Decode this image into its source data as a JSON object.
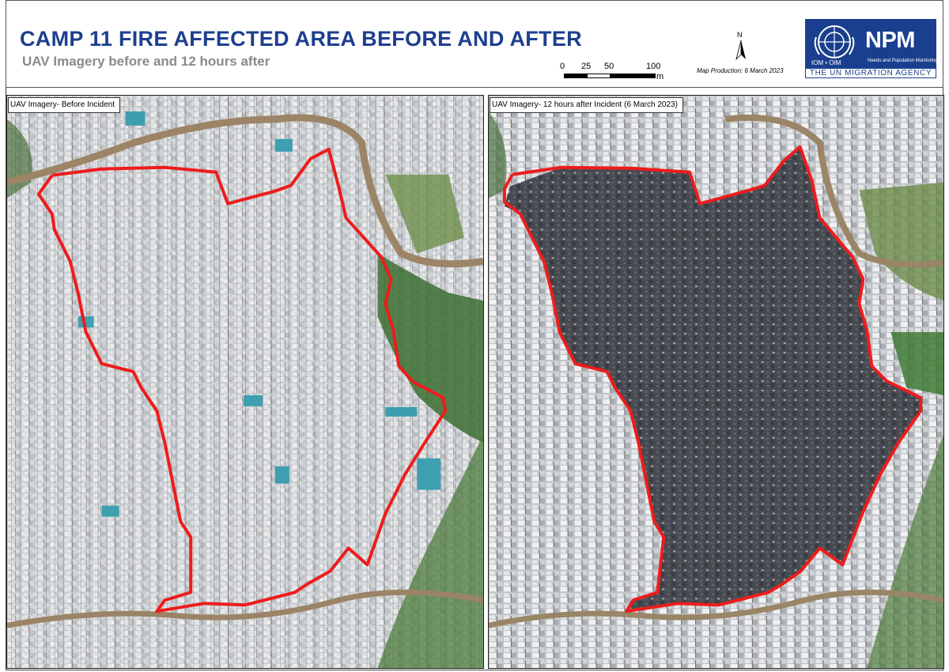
{
  "header": {
    "title": "CAMP 11 FIRE AFFECTED AREA BEFORE AND AFTER",
    "subtitle": "UAV Imagery before and 12 hours after",
    "north_label": "N",
    "scale": {
      "ticks": [
        "0",
        "25",
        "50",
        "100"
      ],
      "unit": "m"
    },
    "production": "Map Production: 6 March 2023"
  },
  "logo": {
    "org": "IOM • OIM",
    "npm": "NPM",
    "npm_sub": "Needs and Population Monitoring",
    "agency": "THE UN MIGRATION AGENCY"
  },
  "panels": {
    "before_label": "UAV Imagery- Before Incident",
    "after_label": "UAV Imagery- 12 hours after Incident (6 March 2023)"
  },
  "colors": {
    "title": "#1e3f8f",
    "boundary": "#ee1c1c",
    "logo_bg": "#1a3f8e"
  }
}
